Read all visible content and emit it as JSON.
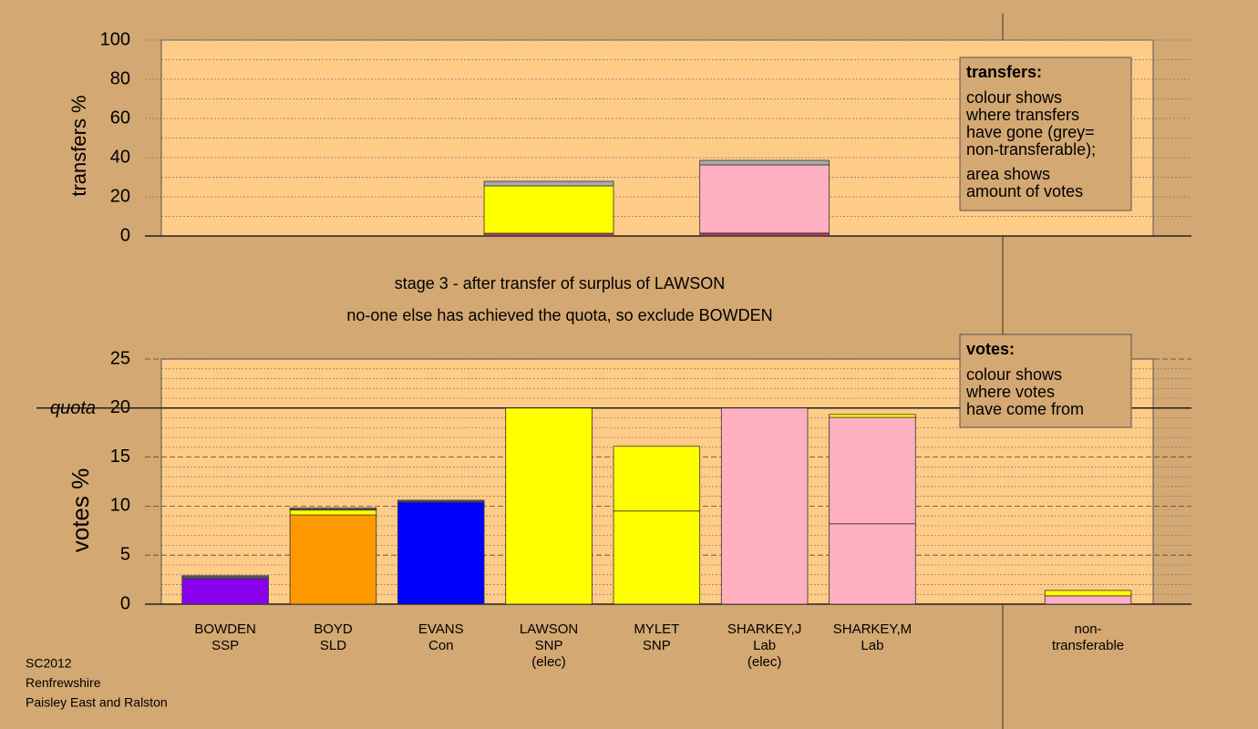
{
  "chart_data": [
    {
      "type": "bar",
      "stacked": true,
      "ylabel": "transfers %",
      "ylim": [
        0,
        100
      ],
      "yticks": [
        0,
        20,
        40,
        60,
        80,
        100
      ],
      "minor_yticks": [
        10,
        30,
        50,
        70,
        90
      ],
      "series": [
        {
          "color": "#b03a5a",
          "values": [
            null,
            null,
            null,
            1.4,
            null,
            1.5,
            null,
            null,
            null
          ]
        },
        {
          "color": "#ffff00",
          "values": [
            null,
            null,
            null,
            24.2,
            null,
            null,
            null,
            null,
            null
          ]
        },
        {
          "color": "#ffb0c0",
          "values": [
            null,
            null,
            null,
            null,
            null,
            34.8,
            null,
            null,
            null
          ]
        },
        {
          "color": "#aaaaaa",
          "values": [
            null,
            null,
            null,
            2.3,
            null,
            2.3,
            null,
            null,
            null
          ]
        }
      ],
      "annotations": [
        "stage 3 - after transfer of surplus of LAWSON",
        "no-one else has achieved the quota, so exclude BOWDEN"
      ],
      "info": {
        "title": "transfers:",
        "paragraphs": [
          [
            "colour shows",
            "where transfers",
            "have gone (grey=",
            "non-transferable);"
          ],
          [
            "area shows",
            "amount of votes"
          ]
        ]
      }
    },
    {
      "type": "bar",
      "stacked": true,
      "ylabel": "votes %",
      "ylim": [
        0,
        25
      ],
      "yticks": [
        0,
        5,
        10,
        15,
        20,
        25
      ],
      "minor_yticks": [
        1,
        2,
        3,
        4,
        6,
        7,
        8,
        9,
        11,
        12,
        13,
        14,
        16,
        17,
        18,
        19,
        21,
        22,
        23,
        24
      ],
      "quota": 20,
      "quota_label": "quota",
      "categories": [
        [
          "BOWDEN",
          "SSP"
        ],
        [
          "BOYD",
          "SLD"
        ],
        [
          "EVANS",
          "Con"
        ],
        [
          "LAWSON",
          "SNP",
          "(elec)"
        ],
        [
          "MYLET",
          "SNP"
        ],
        [
          "SHARKEY,J",
          "Lab",
          "(elec)"
        ],
        [
          "SHARKEY,M",
          "Lab"
        ],
        null,
        [
          "non-",
          "transferable"
        ]
      ],
      "series": [
        {
          "color": "#8800ee",
          "values": [
            2.6,
            null,
            null,
            null,
            null,
            null,
            null,
            null,
            null
          ]
        },
        {
          "color": "#ff9900",
          "values": [
            null,
            9.1,
            null,
            null,
            null,
            null,
            null,
            null,
            null
          ]
        },
        {
          "color": "#0000ff",
          "values": [
            null,
            null,
            10.4,
            null,
            null,
            null,
            null,
            null,
            null
          ]
        },
        {
          "color": "#ffff00",
          "values": [
            null,
            null,
            null,
            20,
            9.5,
            null,
            null,
            null,
            null
          ]
        },
        {
          "color": "#ffb0c0",
          "values": [
            null,
            null,
            null,
            null,
            null,
            20,
            8.2,
            null,
            0.85
          ]
        },
        {
          "color": "#ffb0c0",
          "values": [
            null,
            null,
            null,
            null,
            null,
            null,
            10.85,
            null,
            null
          ]
        },
        {
          "color": "#ffff00",
          "values": [
            null,
            0.5,
            null,
            null,
            6.6,
            null,
            0.3,
            null,
            0.55
          ]
        },
        {
          "color": "#555555",
          "values": [
            0.3,
            0.2,
            0.2,
            null,
            null,
            null,
            null,
            null,
            null
          ]
        }
      ],
      "info": {
        "title": "votes:",
        "paragraphs": [
          [
            "colour shows",
            "where votes",
            "have come from"
          ]
        ]
      }
    }
  ],
  "footer": [
    "SC2012",
    "Renfrewshire",
    "Paisley East and Ralston"
  ]
}
